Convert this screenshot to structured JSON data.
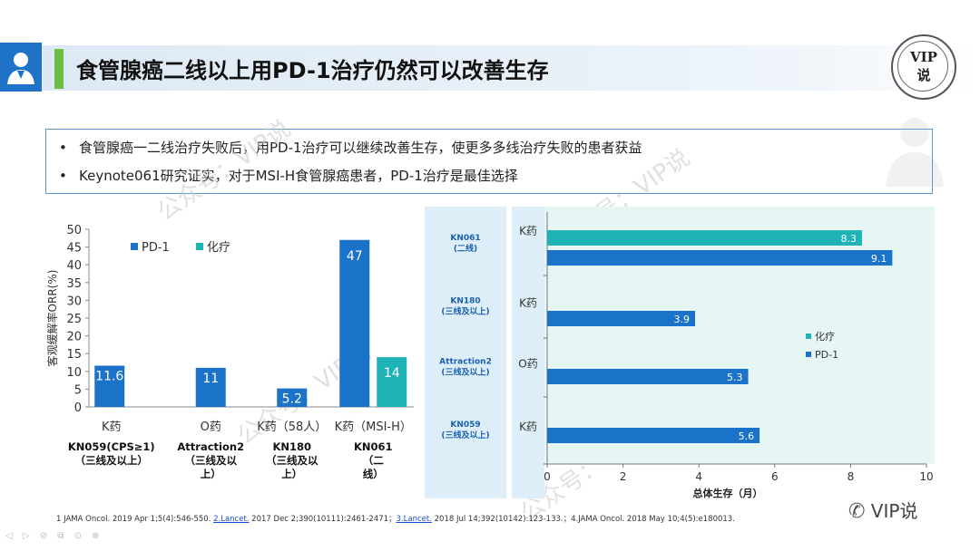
{
  "header": {
    "title": "食管腺癌二线以上用PD-1治疗仍然可以改善生存",
    "badge_line1": "VIP",
    "badge_line2": "说"
  },
  "bullets": [
    "食管腺癌一二线治疗失败后，用PD-1治疗可以继续改善生存，使更多多线治疗失败的患者获益",
    "Keynote061研究证实，对于MSI-H食管腺癌患者，PD-1治疗是最佳选择"
  ],
  "bullet_marker": "•",
  "watermark": "公众号：VIP说",
  "colors": {
    "pd1": "#1a73c9",
    "chemo": "#1fb3b8",
    "title_accent": "#6fbe44",
    "header_blue": "#1e73c8"
  },
  "chart_data": [
    {
      "type": "bar",
      "ylabel": "客观缓解率ORR(%)",
      "ylim": [
        0,
        50
      ],
      "yticks": [
        0,
        5,
        10,
        15,
        20,
        25,
        30,
        35,
        40,
        45,
        50
      ],
      "legend": [
        "PD-1",
        "化疗"
      ],
      "categories": [
        "K药",
        "O药",
        "K药（58人）",
        "K药（MSI-H）"
      ],
      "study_labels": [
        [
          "KN059(CPS≥1)",
          "（三线及以上）"
        ],
        [
          "Attraction2",
          "（三线及以",
          "上）"
        ],
        [
          "KN180",
          "（三线及以",
          "上）"
        ],
        [
          "KN061",
          "（二",
          "线）"
        ]
      ],
      "series": [
        {
          "name": "PD-1",
          "values": [
            11.6,
            11,
            5.2,
            47
          ]
        },
        {
          "name": "化疗",
          "values": [
            null,
            null,
            null,
            14
          ]
        }
      ],
      "value_labels": [
        "11.6",
        "11",
        "5.2",
        "47",
        "14"
      ]
    },
    {
      "type": "bar",
      "orientation": "horizontal",
      "xlabel": "总体生存（月）",
      "xlim": [
        0,
        10
      ],
      "xticks": [
        0,
        2,
        4,
        6,
        8,
        10
      ],
      "legend": [
        "化疗",
        "PD-1"
      ],
      "groups": [
        {
          "study": [
            "KN061",
            "(二线)"
          ],
          "drug": "K药",
          "bars": [
            {
              "series": "化疗",
              "value": 8.3
            },
            {
              "series": "PD-1",
              "value": 9.1
            }
          ]
        },
        {
          "study": [
            "KN180",
            "(三线及以上)"
          ],
          "drug": "K药",
          "bars": [
            {
              "series": "PD-1",
              "value": 3.9
            }
          ]
        },
        {
          "study": [
            "Attraction2",
            "(三线及以上)"
          ],
          "drug": "O药",
          "bars": [
            {
              "series": "PD-1",
              "value": 5.3
            }
          ]
        },
        {
          "study": [
            "KN059",
            "(三线及以上)"
          ],
          "drug": "K药",
          "bars": [
            {
              "series": "PD-1",
              "value": 5.6
            }
          ]
        }
      ]
    }
  ],
  "references": {
    "r1": "1 JAMA Oncol. 2019 Apr 1;5(4):546-550. ",
    "r2_link": "2.Lancet.",
    "r2": " 2017 Dec 2;390(10111):2461-2471；",
    "r3_link": "3.Lancet.",
    "r3": " 2018 Jul 14;392(10142):123-133.；4.JAMA Oncol. 2018 May 10;4(5):e180013."
  },
  "wechat_label": "VIP说",
  "nav_icons": "◁ ▷ ⊘ ⧉ ⊙ ⊕"
}
